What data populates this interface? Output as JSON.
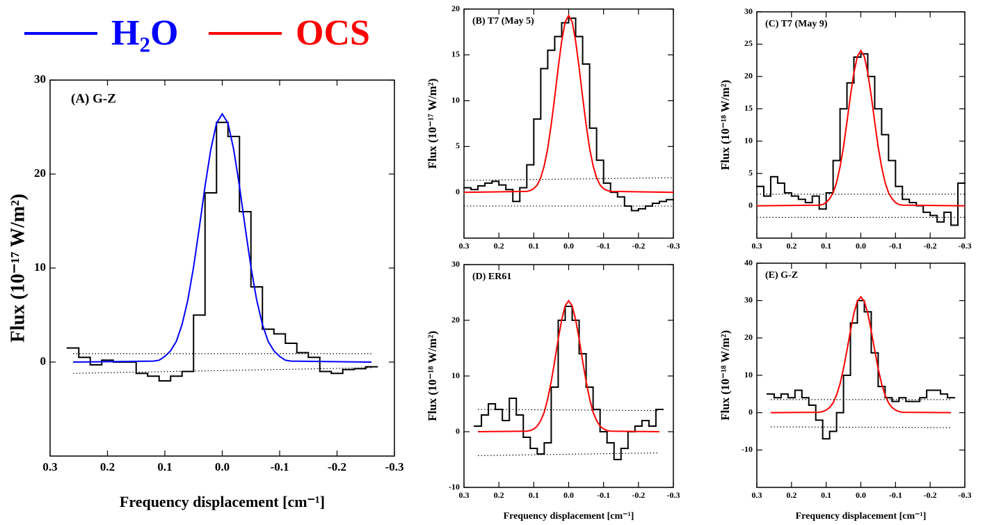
{
  "chart_data": [
    {
      "type": "line",
      "title": "(A) G-Z",
      "ylabel": "Flux (10⁻¹⁷ W/m²)",
      "xlabel": "Frequency displacement [cm⁻¹]",
      "xlim": [
        0.3,
        -0.3
      ],
      "xticks": [
        0.3,
        0.2,
        0.1,
        {
          "value": 0,
          "label": "0.0"
        },
        -0.1,
        -0.2,
        -0.3
      ],
      "ylim": [
        -10,
        30
      ],
      "yticks": [
        0,
        10,
        20,
        30
      ],
      "series": [
        {
          "style": "step",
          "color": "#000000",
          "x": [
            0.26,
            0.24,
            0.22,
            0.2,
            0.18,
            0.16,
            0.14,
            0.12,
            0.1,
            0.08,
            0.06,
            0.04,
            0.02,
            0,
            -0.02,
            -0.04,
            -0.06,
            -0.08,
            -0.1,
            -0.12,
            -0.14,
            -0.16,
            -0.18,
            -0.2,
            -0.22,
            -0.24,
            -0.26
          ],
          "values": [
            1.5,
            0.5,
            -0.3,
            0.2,
            0,
            0,
            -1.2,
            -1.5,
            -2,
            -1.5,
            -1,
            5,
            18,
            25.5,
            24,
            16,
            8,
            3.5,
            3,
            2,
            1,
            0.5,
            -1,
            -1.2,
            -0.8,
            -0.7,
            -0.5
          ]
        },
        {
          "name": "H₂O",
          "style": "solid",
          "color": "#0000ff",
          "x": [
            0.26,
            0.12,
            0.11,
            0.1,
            0.09,
            0.08,
            0.07,
            0.06,
            0.05,
            0.04,
            0.03,
            0.02,
            0.01,
            0,
            -0.01,
            -0.02,
            -0.03,
            -0.04,
            -0.05,
            -0.06,
            -0.07,
            -0.08,
            -0.09,
            -0.1,
            -0.11,
            -0.12,
            -0.26
          ],
          "values": [
            0,
            0.1,
            0.2,
            0.6,
            1.2,
            2.2,
            4,
            6.6,
            10.1,
            14.3,
            18.7,
            22.6,
            25.4,
            26.4,
            25.4,
            22.6,
            18.7,
            14.3,
            10.1,
            6.6,
            4,
            2.2,
            1.2,
            0.6,
            0.2,
            0.1,
            0
          ]
        },
        {
          "style": "dotted",
          "color": "#000000",
          "x": [
            0.26,
            -0.26
          ],
          "values": [
            0.9,
            0.9
          ]
        },
        {
          "style": "dotted",
          "color": "#000000",
          "x": [
            0.26,
            -0.26
          ],
          "values": [
            -1.2,
            -0.6
          ]
        }
      ]
    },
    {
      "type": "line",
      "title": "(B) T7 (May 5)",
      "ylabel": "Flux (10⁻¹⁷ W/m²)",
      "xlim": [
        0.3,
        -0.3
      ],
      "xticks": [
        0.3,
        0.2,
        0.1,
        {
          "value": 0,
          "label": "0.0"
        },
        -0.1,
        -0.2,
        -0.3
      ],
      "ylim": [
        -5,
        20
      ],
      "yticks": [
        0,
        5,
        10,
        15,
        20
      ],
      "series": [
        {
          "style": "step",
          "color": "#000000",
          "x": [
            0.29,
            0.27,
            0.25,
            0.23,
            0.21,
            0.19,
            0.17,
            0.15,
            0.13,
            0.11,
            0.09,
            0.07,
            0.05,
            0.03,
            0.01,
            -0.01,
            -0.03,
            -0.05,
            -0.07,
            -0.09,
            -0.11,
            -0.13,
            -0.15,
            -0.17,
            -0.19,
            -0.21,
            -0.23,
            -0.25,
            -0.27,
            -0.29
          ],
          "values": [
            0.5,
            0.3,
            0.7,
            1,
            1.2,
            0.8,
            0.3,
            -1,
            0.5,
            3,
            8,
            13.5,
            15.5,
            17,
            18.5,
            19,
            17,
            14,
            7,
            3.5,
            1,
            0,
            -0.5,
            -1.5,
            -2,
            -1.8,
            -1.5,
            -1.2,
            -1,
            -0.8
          ]
        },
        {
          "name": "OCS",
          "style": "solid",
          "color": "#ff0000",
          "x": [
            0.3,
            0.12,
            0.11,
            0.1,
            0.09,
            0.08,
            0.07,
            0.06,
            0.05,
            0.04,
            0.03,
            0.02,
            0.01,
            0,
            -0.01,
            -0.02,
            -0.03,
            -0.04,
            -0.05,
            -0.06,
            -0.07,
            -0.08,
            -0.09,
            -0.1,
            -0.11,
            -0.12,
            -0.3
          ],
          "values": [
            0,
            0.1,
            0.2,
            0.4,
            0.8,
            1.6,
            2.9,
            4.8,
            7.4,
            10.4,
            13.6,
            16.5,
            18.6,
            19.3,
            18.6,
            16.5,
            13.6,
            10.4,
            7.4,
            4.8,
            2.9,
            1.6,
            0.8,
            0.4,
            0.2,
            0.1,
            0
          ]
        },
        {
          "style": "dotted",
          "color": "#000000",
          "x": [
            0.3,
            -0.3
          ],
          "values": [
            1.3,
            1.6
          ]
        },
        {
          "style": "dotted",
          "color": "#000000",
          "x": [
            0.3,
            -0.3
          ],
          "values": [
            -1.5,
            -1.5
          ]
        }
      ]
    },
    {
      "type": "line",
      "title": "(C) T7 (May 9)",
      "ylabel": "Flux (10⁻¹⁸ W/m²)",
      "xlim": [
        0.3,
        -0.3
      ],
      "xticks": [
        0.3,
        0.2,
        0.1,
        {
          "value": 0,
          "label": "0.0"
        },
        -0.1,
        -0.2,
        -0.3
      ],
      "ylim": [
        -5,
        30
      ],
      "yticks": [
        0,
        5,
        10,
        15,
        20,
        25,
        30
      ],
      "series": [
        {
          "style": "step",
          "color": "#000000",
          "x": [
            0.29,
            0.27,
            0.25,
            0.23,
            0.21,
            0.19,
            0.17,
            0.15,
            0.13,
            0.11,
            0.09,
            0.07,
            0.05,
            0.03,
            0.01,
            -0.01,
            -0.03,
            -0.05,
            -0.07,
            -0.09,
            -0.11,
            -0.13,
            -0.15,
            -0.17,
            -0.19,
            -0.21,
            -0.23,
            -0.25,
            -0.27,
            -0.29
          ],
          "values": [
            3,
            1.5,
            4.5,
            3.5,
            2,
            1.5,
            1,
            0.5,
            1.5,
            -0.5,
            2,
            7,
            15,
            19,
            23,
            23.5,
            20,
            15,
            11,
            7,
            3,
            1,
            0.5,
            0,
            -1,
            -1.5,
            -2.5,
            -1,
            -3,
            3.5
          ]
        },
        {
          "style": "solid",
          "color": "#ff0000",
          "x": [
            0.3,
            0.12,
            0.11,
            0.1,
            0.09,
            0.08,
            0.07,
            0.06,
            0.05,
            0.04,
            0.03,
            0.02,
            0.01,
            0,
            -0.01,
            -0.02,
            -0.03,
            -0.04,
            -0.05,
            -0.06,
            -0.07,
            -0.08,
            -0.09,
            -0.1,
            -0.11,
            -0.12,
            -0.3
          ],
          "values": [
            0,
            0.1,
            0.2,
            0.5,
            1.1,
            2,
            3.6,
            6,
            9.1,
            13,
            17,
            20.6,
            23.1,
            24,
            23.1,
            20.6,
            17,
            13,
            9.1,
            6,
            3.6,
            2,
            1.1,
            0.5,
            0.2,
            0.1,
            0
          ]
        },
        {
          "style": "dotted",
          "color": "#000000",
          "x": [
            0.3,
            -0.3
          ],
          "values": [
            1.8,
            1.8
          ]
        },
        {
          "style": "dotted",
          "color": "#000000",
          "x": [
            0.3,
            -0.3
          ],
          "values": [
            -1.8,
            -1.8
          ]
        }
      ]
    },
    {
      "type": "line",
      "title": "(D) ER61",
      "ylabel": "Flux (10⁻¹⁸ W/m²)",
      "xlabel": "Frequency displacement [cm⁻¹]",
      "xlim": [
        0.3,
        -0.3
      ],
      "xticks": [
        0.3,
        0.2,
        0.1,
        {
          "value": 0,
          "label": "0.0"
        },
        -0.1,
        -0.2,
        -0.3
      ],
      "ylim": [
        -10,
        30
      ],
      "yticks": [
        -10,
        0,
        10,
        20,
        30
      ],
      "series": [
        {
          "style": "step",
          "color": "#000000",
          "x": [
            0.26,
            0.24,
            0.22,
            0.2,
            0.18,
            0.16,
            0.14,
            0.12,
            0.1,
            0.08,
            0.06,
            0.04,
            0.02,
            0,
            -0.02,
            -0.04,
            -0.06,
            -0.08,
            -0.1,
            -0.12,
            -0.14,
            -0.16,
            -0.18,
            -0.2,
            -0.22,
            -0.24,
            -0.26
          ],
          "values": [
            1,
            3,
            5,
            4,
            2,
            6,
            3,
            -1,
            -3,
            -4,
            -2,
            8,
            20,
            22.5,
            20,
            14,
            8,
            4,
            0,
            -2,
            -5,
            -3,
            0,
            1,
            2,
            1,
            4
          ]
        },
        {
          "style": "solid",
          "color": "#ff0000",
          "x": [
            0.26,
            0.12,
            0.11,
            0.1,
            0.09,
            0.08,
            0.07,
            0.06,
            0.05,
            0.04,
            0.03,
            0.02,
            0.01,
            0,
            -0.01,
            -0.02,
            -0.03,
            -0.04,
            -0.05,
            -0.06,
            -0.07,
            -0.08,
            -0.09,
            -0.1,
            -0.11,
            -0.12,
            -0.26
          ],
          "values": [
            0,
            0.1,
            0.2,
            0.5,
            1,
            2,
            3.5,
            5.9,
            9,
            12.7,
            16.6,
            20.1,
            22.6,
            23.5,
            22.6,
            20.1,
            16.6,
            12.7,
            9,
            5.9,
            3.5,
            2,
            1,
            0.5,
            0.2,
            0.1,
            0
          ]
        },
        {
          "style": "dotted",
          "color": "#000000",
          "x": [
            0.26,
            -0.26
          ],
          "values": [
            4,
            3.8
          ]
        },
        {
          "style": "dotted",
          "color": "#000000",
          "x": [
            0.26,
            -0.26
          ],
          "values": [
            -4.3,
            -3.8
          ]
        }
      ]
    },
    {
      "type": "line",
      "title": "(E) G-Z",
      "ylabel": "Flux (10⁻¹⁸ W/m²)",
      "xlabel": "Frequency displacement [cm⁻¹]",
      "xlim": [
        0.3,
        -0.3
      ],
      "xticks": [
        0.3,
        0.2,
        0.1,
        {
          "value": 0,
          "label": "0.0"
        },
        -0.1,
        -0.2,
        -0.3
      ],
      "ylim": [
        -20,
        40
      ],
      "yticks": [
        -10,
        0,
        10,
        20,
        30,
        40
      ],
      "series": [
        {
          "style": "step",
          "color": "#000000",
          "x": [
            0.26,
            0.24,
            0.22,
            0.2,
            0.18,
            0.16,
            0.14,
            0.12,
            0.1,
            0.08,
            0.06,
            0.04,
            0.02,
            0,
            -0.02,
            -0.04,
            -0.06,
            -0.08,
            -0.1,
            -0.12,
            -0.14,
            -0.16,
            -0.18,
            -0.2,
            -0.22,
            -0.24,
            -0.26
          ],
          "values": [
            5,
            4,
            5,
            4,
            6,
            4,
            2,
            -2,
            -7,
            -5,
            0,
            10,
            24,
            30,
            27,
            16,
            7,
            4,
            3,
            4,
            3,
            3,
            4,
            6,
            6,
            5,
            4
          ]
        },
        {
          "style": "solid",
          "color": "#ff0000",
          "x": [
            0.26,
            0.12,
            0.11,
            0.1,
            0.09,
            0.08,
            0.07,
            0.06,
            0.05,
            0.04,
            0.03,
            0.02,
            0.01,
            0,
            -0.01,
            -0.02,
            -0.03,
            -0.04,
            -0.05,
            -0.06,
            -0.07,
            -0.08,
            -0.09,
            -0.1,
            -0.11,
            -0.12,
            -0.26
          ],
          "values": [
            0,
            0.1,
            0.3,
            0.7,
            1.4,
            2.6,
            4.7,
            7.7,
            11.8,
            16.7,
            21.9,
            26.6,
            29.8,
            31,
            29.8,
            26.6,
            21.9,
            16.7,
            11.8,
            7.7,
            4.7,
            2.6,
            1.4,
            0.7,
            0.3,
            0.1,
            0
          ]
        },
        {
          "style": "dotted",
          "color": "#000000",
          "x": [
            0.26,
            -0.26
          ],
          "values": [
            3.5,
            3.5
          ]
        },
        {
          "style": "dotted",
          "color": "#000000",
          "x": [
            0.26,
            -0.26
          ],
          "values": [
            -3.8,
            -4
          ]
        }
      ]
    }
  ]
}
